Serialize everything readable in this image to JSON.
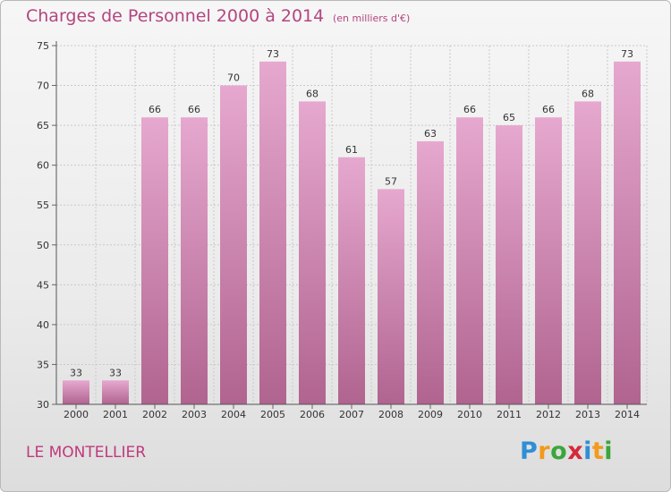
{
  "title": "Charges de Personnel 2000 à 2014",
  "subtitle": "(en milliers d'€)",
  "commune": "LE MONTELLIER",
  "logo": {
    "letters": [
      "P",
      "r",
      "o",
      "x",
      "i",
      "t",
      "i"
    ],
    "colors": [
      "#2f8fd6",
      "#f29a1c",
      "#3aa63a",
      "#d6283a",
      "#2f8fd6",
      "#f29a1c",
      "#3aa63a"
    ]
  },
  "colors": {
    "bar_top": "#e6a8cf",
    "bar_bottom": "#b0648f",
    "title": "#b3467f"
  },
  "chart_data": {
    "type": "bar",
    "title": "Charges de Personnel 2000 à 2014",
    "subtitle": "(en milliers d'€)",
    "xlabel": "",
    "ylabel": "",
    "ylim": [
      30,
      75
    ],
    "yticks": [
      30,
      35,
      40,
      45,
      50,
      55,
      60,
      65,
      70,
      75
    ],
    "grid": true,
    "categories": [
      "2000",
      "2001",
      "2002",
      "2003",
      "2004",
      "2005",
      "2006",
      "2007",
      "2008",
      "2009",
      "2010",
      "2011",
      "2012",
      "2013",
      "2014"
    ],
    "values": [
      33,
      33,
      66,
      66,
      70,
      73,
      68,
      61,
      57,
      63,
      66,
      65,
      66,
      68,
      73
    ]
  }
}
